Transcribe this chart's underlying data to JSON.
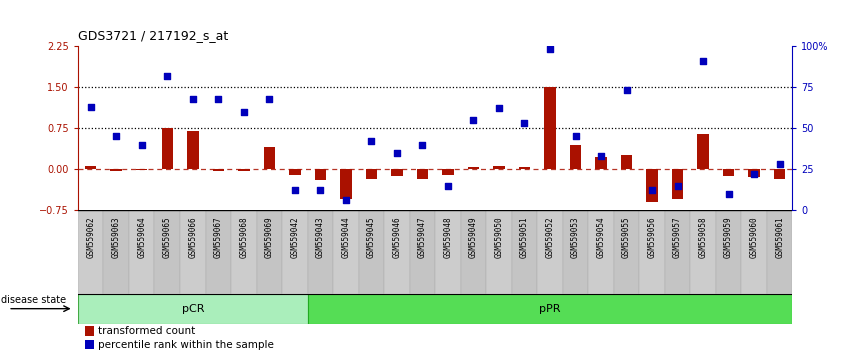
{
  "title": "GDS3721 / 217192_s_at",
  "samples": [
    "GSM559062",
    "GSM559063",
    "GSM559064",
    "GSM559065",
    "GSM559066",
    "GSM559067",
    "GSM559068",
    "GSM559069",
    "GSM559042",
    "GSM559043",
    "GSM559044",
    "GSM559045",
    "GSM559046",
    "GSM559047",
    "GSM559048",
    "GSM559049",
    "GSM559050",
    "GSM559051",
    "GSM559052",
    "GSM559053",
    "GSM559054",
    "GSM559055",
    "GSM559056",
    "GSM559057",
    "GSM559058",
    "GSM559059",
    "GSM559060",
    "GSM559061"
  ],
  "transformed_count": [
    0.05,
    -0.03,
    -0.02,
    0.75,
    0.7,
    -0.04,
    -0.04,
    0.4,
    -0.1,
    -0.2,
    -0.55,
    -0.18,
    -0.12,
    -0.18,
    -0.1,
    0.04,
    0.06,
    0.04,
    1.5,
    0.45,
    0.22,
    0.25,
    -0.6,
    -0.55,
    0.65,
    -0.12,
    -0.15,
    -0.18
  ],
  "percentile_rank": [
    63,
    45,
    40,
    82,
    68,
    68,
    60,
    68,
    12,
    12,
    6,
    42,
    35,
    40,
    15,
    55,
    62,
    53,
    98,
    45,
    33,
    73,
    12,
    15,
    91,
    10,
    22,
    28
  ],
  "group_labels": [
    "pCR",
    "pPR"
  ],
  "group_ranges": [
    [
      0,
      9
    ],
    [
      9,
      28
    ]
  ],
  "group_colors_light": [
    "#b8f0b8",
    "#66dd66"
  ],
  "group_colors_dark": [
    "#66cc66",
    "#009900"
  ],
  "bar_color": "#aa1100",
  "dot_color": "#0000bb",
  "bg_color": "#ffffff",
  "plot_bg": "#ffffff",
  "tick_bg": "#cccccc",
  "ylim_left": [
    -0.75,
    2.25
  ],
  "ylim_right": [
    0,
    100
  ],
  "yticks_left": [
    -0.75,
    0.0,
    0.75,
    1.5,
    2.25
  ],
  "yticks_right": [
    0,
    25,
    50,
    75,
    100
  ],
  "ytick_labels_right": [
    "0",
    "25",
    "50",
    "75",
    "100%"
  ],
  "hlines": [
    0.75,
    1.5
  ],
  "hline_zero": 0.0,
  "disease_state_label": "disease state",
  "legend_items": [
    "transformed count",
    "percentile rank within the sample"
  ],
  "legend_colors": [
    "#aa1100",
    "#0000bb"
  ]
}
